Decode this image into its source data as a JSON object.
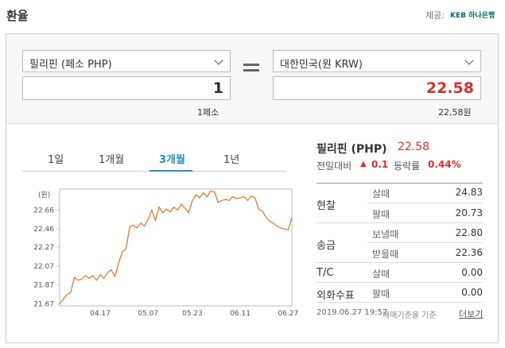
{
  "header": {
    "title": "환율",
    "provider_label": "제공:",
    "provider": "KEB 하나은행"
  },
  "converter": {
    "from_currency": "필리핀 (페소 PHP)",
    "from_amount": "1",
    "from_note": "1페소",
    "to_currency": "대한민국(원 KRW)",
    "to_amount": "22.58",
    "to_note": "22,58원"
  },
  "tabs": [
    "1일",
    "1개월",
    "3개월",
    "1년"
  ],
  "chart_data": {
    "type": "line",
    "y_label": "(원)",
    "color": "#e07a2e",
    "categories": [
      null,
      null,
      null,
      null,
      null,
      null,
      null,
      null,
      null,
      null,
      null,
      "04.17",
      null,
      null,
      null,
      null,
      null,
      null,
      null,
      null,
      null,
      null,
      null,
      null,
      "05.07",
      null,
      null,
      null,
      null,
      null,
      null,
      null,
      null,
      null,
      null,
      null,
      "05.23",
      null,
      null,
      null,
      null,
      null,
      null,
      null,
      null,
      null,
      null,
      null,
      null,
      "06.11",
      null,
      null,
      null,
      null,
      null,
      null,
      null,
      null,
      null,
      null,
      null,
      null,
      "06.27",
      null
    ],
    "values": [
      21.67,
      21.72,
      21.77,
      21.79,
      21.95,
      21.92,
      21.93,
      21.97,
      21.94,
      21.97,
      21.92,
      21.98,
      21.94,
      22.0,
      22.03,
      21.96,
      22.1,
      22.22,
      22.25,
      22.48,
      22.5,
      22.47,
      22.52,
      22.49,
      22.56,
      22.66,
      22.55,
      22.69,
      22.63,
      22.67,
      22.64,
      22.69,
      22.66,
      22.72,
      22.68,
      22.63,
      22.76,
      22.82,
      22.79,
      22.84,
      22.8,
      22.86,
      22.85,
      22.74,
      22.76,
      22.77,
      22.76,
      22.8,
      22.78,
      22.79,
      22.8,
      22.76,
      22.81,
      22.79,
      22.67,
      22.65,
      22.58,
      22.54,
      22.52,
      22.49,
      22.47,
      22.46,
      22.45,
      22.58
    ],
    "ylim": [
      21.65,
      22.88
    ],
    "yticks": [
      21.67,
      21.87,
      22.07,
      22.27,
      22.46,
      22.66
    ]
  },
  "summary": {
    "name": "필리핀 (PHP)",
    "rate": "22.58",
    "change_label": "전일대비",
    "change_arrow": "▲",
    "change": "0.1",
    "ratio_label": "등락률",
    "ratio": "0.44%"
  },
  "table": {
    "groups": [
      "현찰",
      "송금",
      "T/C",
      "외화수표"
    ],
    "rows": [
      [
        "살때",
        "24.83"
      ],
      [
        "팔때",
        "20.73"
      ],
      [
        "보낼때",
        "22.80"
      ],
      [
        "받을때",
        "22.36"
      ],
      [
        "살때",
        "0.00"
      ],
      [
        "팔때",
        "0.00"
      ]
    ]
  },
  "footer": {
    "date": "2019.06.27 19:57",
    "basis": "매매기준율 기준",
    "more": "더보기"
  }
}
